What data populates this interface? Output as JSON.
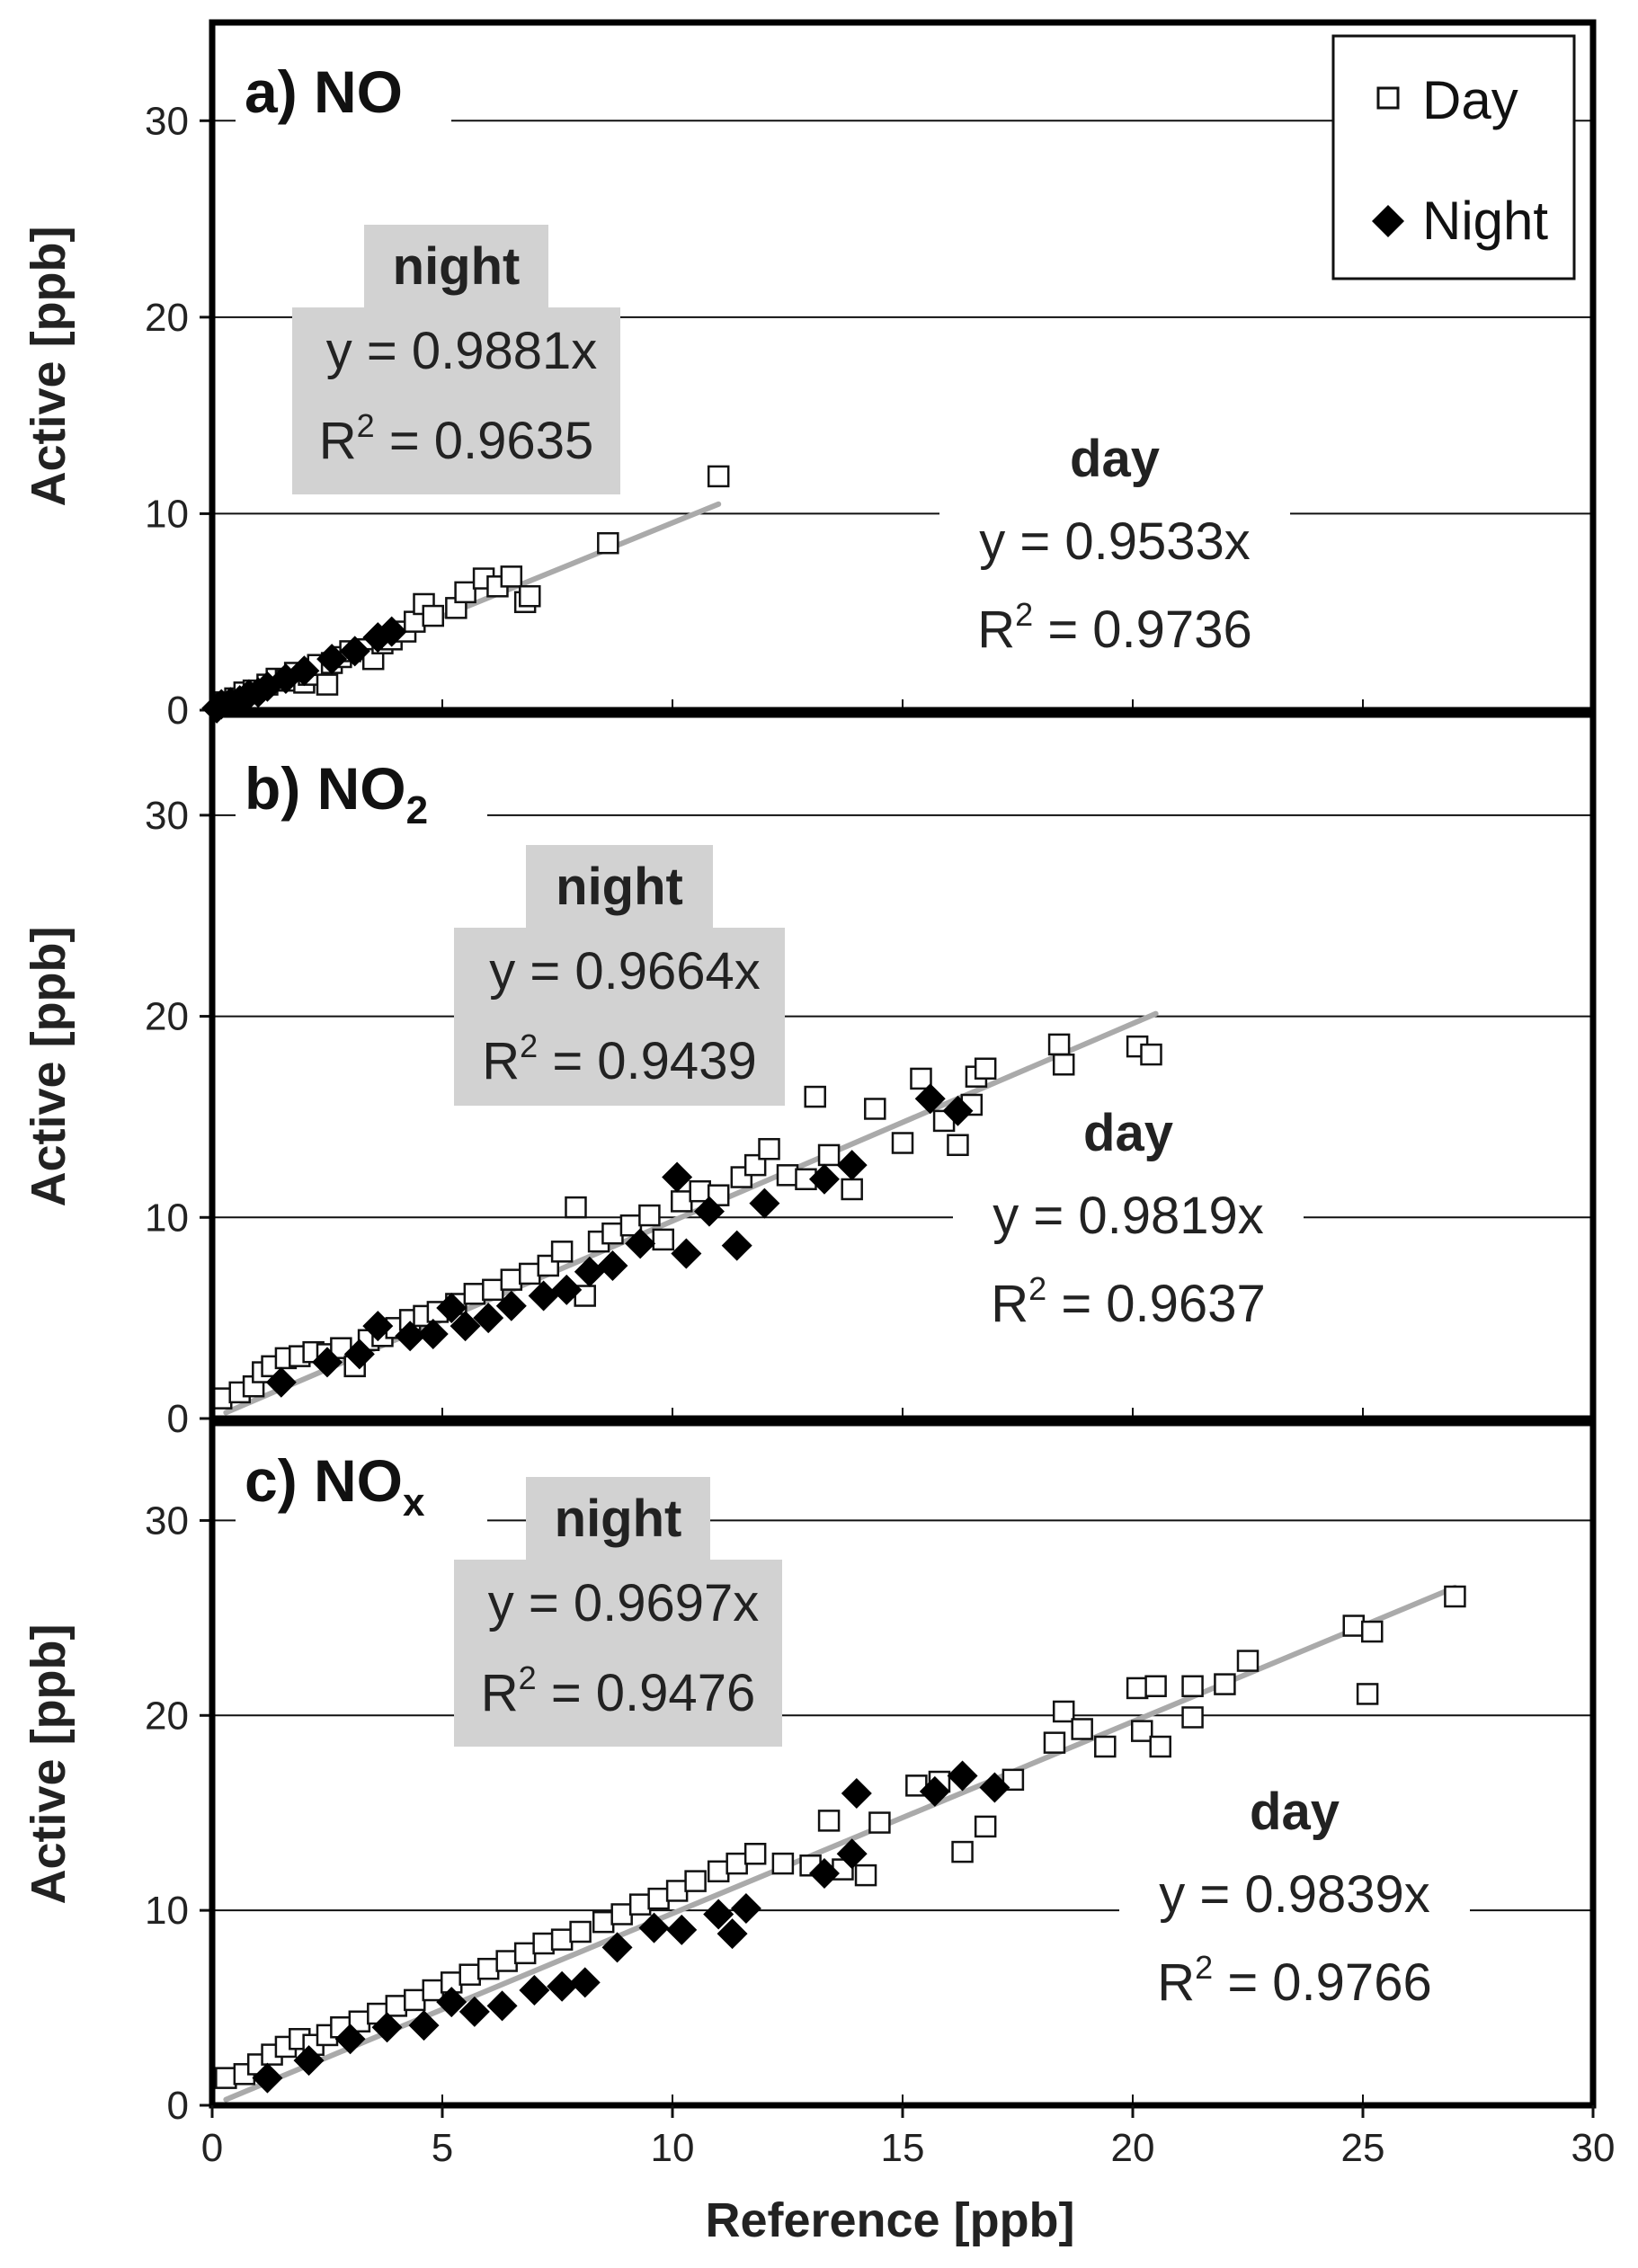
{
  "chart_data": {
    "type": "scatter",
    "xlabel": "Reference [ppb]",
    "ylabel": "Active [ppb]",
    "xlim": [
      0,
      30
    ],
    "ylim": [
      0,
      35
    ],
    "xticks": [
      "0",
      "5",
      "10",
      "15",
      "20",
      "25",
      "30"
    ],
    "yticks": [
      "0",
      "10",
      "20",
      "30"
    ],
    "legend": {
      "position": "top-right",
      "day": "Day",
      "night": "Night"
    },
    "panels": [
      {
        "id": "a",
        "label_prefix": "a)",
        "label_species": "NO",
        "label_subscript": "",
        "day_fit": {
          "title": "day",
          "eq": "y = 0.9533x",
          "r2_prefix": "R",
          "r2_sup": "2",
          "r2_value": " = 0.9736",
          "slope": 0.9533,
          "xmax": 11.0
        },
        "night_fit": {
          "title": "night",
          "eq": "y = 0.9881x",
          "r2_prefix": "R",
          "r2_sup": "2",
          "r2_value": " = 0.9635",
          "slope": 0.9881
        },
        "day_points": [
          [
            0.3,
            0.4
          ],
          [
            0.5,
            0.6
          ],
          [
            0.7,
            0.9
          ],
          [
            0.9,
            1.0
          ],
          [
            1.2,
            1.3
          ],
          [
            1.4,
            1.6
          ],
          [
            1.6,
            1.5
          ],
          [
            1.8,
            1.9
          ],
          [
            2.0,
            1.4
          ],
          [
            2.1,
            1.8
          ],
          [
            2.3,
            2.3
          ],
          [
            2.5,
            1.3
          ],
          [
            2.6,
            2.4
          ],
          [
            2.8,
            2.7
          ],
          [
            3.0,
            3.0
          ],
          [
            3.3,
            3.1
          ],
          [
            3.5,
            2.6
          ],
          [
            3.7,
            3.4
          ],
          [
            3.9,
            3.6
          ],
          [
            4.2,
            4.0
          ],
          [
            4.4,
            4.5
          ],
          [
            4.6,
            5.4
          ],
          [
            4.8,
            4.8
          ],
          [
            5.3,
            5.2
          ],
          [
            5.5,
            6.0
          ],
          [
            5.9,
            6.7
          ],
          [
            6.2,
            6.3
          ],
          [
            6.5,
            6.8
          ],
          [
            6.8,
            5.5
          ],
          [
            6.9,
            5.8
          ],
          [
            8.6,
            8.5
          ],
          [
            11.0,
            11.9
          ]
        ],
        "night_points": [
          [
            0.1,
            0.1
          ],
          [
            0.2,
            0.3
          ],
          [
            0.4,
            0.4
          ],
          [
            0.6,
            0.5
          ],
          [
            0.8,
            0.8
          ],
          [
            1.0,
            0.9
          ],
          [
            1.2,
            1.2
          ],
          [
            1.6,
            1.6
          ],
          [
            2.0,
            2.0
          ],
          [
            2.6,
            2.6
          ],
          [
            3.1,
            3.0
          ],
          [
            3.6,
            3.7
          ],
          [
            3.9,
            4.0
          ]
        ]
      },
      {
        "id": "b",
        "label_prefix": "b)",
        "label_species": "NO",
        "label_subscript": "2",
        "day_fit": {
          "title": "day",
          "eq": "y = 0.9819x",
          "r2_prefix": "R",
          "r2_sup": "2",
          "r2_value": " = 0.9637",
          "slope": 0.9819,
          "xmax": 20.5
        },
        "night_fit": {
          "title": "night",
          "eq": "y = 0.9664x",
          "r2_prefix": "R",
          "r2_sup": "2",
          "r2_value": " = 0.9439",
          "slope": 0.9664
        },
        "day_points": [
          [
            0.2,
            1.0
          ],
          [
            0.6,
            1.3
          ],
          [
            0.9,
            1.6
          ],
          [
            1.1,
            2.3
          ],
          [
            1.3,
            2.6
          ],
          [
            1.6,
            3.0
          ],
          [
            1.9,
            3.1
          ],
          [
            2.2,
            3.3
          ],
          [
            2.5,
            3.2
          ],
          [
            2.8,
            3.5
          ],
          [
            3.1,
            2.6
          ],
          [
            3.4,
            3.9
          ],
          [
            3.7,
            4.1
          ],
          [
            4.0,
            4.5
          ],
          [
            4.3,
            4.9
          ],
          [
            4.6,
            5.1
          ],
          [
            4.9,
            5.3
          ],
          [
            5.3,
            5.7
          ],
          [
            5.7,
            6.2
          ],
          [
            6.1,
            6.4
          ],
          [
            6.5,
            6.9
          ],
          [
            6.9,
            7.2
          ],
          [
            7.3,
            7.6
          ],
          [
            7.6,
            8.3
          ],
          [
            7.9,
            10.5
          ],
          [
            8.1,
            6.1
          ],
          [
            8.4,
            8.8
          ],
          [
            8.7,
            9.2
          ],
          [
            9.1,
            9.6
          ],
          [
            9.5,
            10.1
          ],
          [
            9.8,
            8.9
          ],
          [
            10.2,
            10.8
          ],
          [
            10.6,
            11.3
          ],
          [
            11.0,
            11.1
          ],
          [
            11.5,
            12.0
          ],
          [
            11.8,
            12.6
          ],
          [
            12.1,
            13.4
          ],
          [
            12.5,
            12.1
          ],
          [
            12.9,
            11.9
          ],
          [
            13.1,
            16.0
          ],
          [
            13.4,
            13.1
          ],
          [
            13.9,
            11.4
          ],
          [
            14.4,
            15.4
          ],
          [
            15.0,
            13.7
          ],
          [
            15.4,
            16.9
          ],
          [
            15.9,
            14.8
          ],
          [
            16.2,
            13.6
          ],
          [
            16.5,
            15.6
          ],
          [
            16.6,
            17.0
          ],
          [
            16.8,
            17.4
          ],
          [
            18.4,
            18.6
          ],
          [
            18.5,
            17.6
          ],
          [
            20.1,
            18.5
          ],
          [
            20.4,
            18.1
          ]
        ],
        "night_points": [
          [
            1.5,
            1.8
          ],
          [
            2.5,
            2.8
          ],
          [
            3.2,
            3.2
          ],
          [
            3.6,
            4.6
          ],
          [
            4.3,
            4.1
          ],
          [
            4.8,
            4.2
          ],
          [
            5.2,
            5.5
          ],
          [
            5.5,
            4.6
          ],
          [
            6.0,
            5.0
          ],
          [
            6.5,
            5.6
          ],
          [
            7.2,
            6.1
          ],
          [
            7.7,
            6.4
          ],
          [
            8.2,
            7.3
          ],
          [
            8.7,
            7.6
          ],
          [
            9.3,
            8.7
          ],
          [
            10.1,
            12.0
          ],
          [
            10.3,
            8.2
          ],
          [
            10.8,
            10.3
          ],
          [
            11.4,
            8.6
          ],
          [
            12.0,
            10.7
          ],
          [
            13.3,
            11.9
          ],
          [
            13.9,
            12.6
          ],
          [
            15.6,
            15.9
          ],
          [
            16.2,
            15.3
          ]
        ]
      },
      {
        "id": "c",
        "label_prefix": "c)",
        "label_species": "NO",
        "label_subscript": "x",
        "day_fit": {
          "title": "day",
          "eq": "y = 0.9839x",
          "r2_prefix": "R",
          "r2_sup": "2",
          "r2_value": " = 0.9766",
          "slope": 0.9839,
          "xmax": 27.0
        },
        "night_fit": {
          "title": "night",
          "eq": "y = 0.9697x",
          "r2_prefix": "R",
          "r2_sup": "2",
          "r2_value": " = 0.9476",
          "slope": 0.9697
        },
        "day_points": [
          [
            0.3,
            1.4
          ],
          [
            0.7,
            1.6
          ],
          [
            1.0,
            2.1
          ],
          [
            1.3,
            2.6
          ],
          [
            1.6,
            3.0
          ],
          [
            1.9,
            3.4
          ],
          [
            2.2,
            3.1
          ],
          [
            2.5,
            3.6
          ],
          [
            2.8,
            4.0
          ],
          [
            3.2,
            4.3
          ],
          [
            3.6,
            4.7
          ],
          [
            4.0,
            5.1
          ],
          [
            4.4,
            5.4
          ],
          [
            4.8,
            5.9
          ],
          [
            5.2,
            6.3
          ],
          [
            5.6,
            6.7
          ],
          [
            6.0,
            7.0
          ],
          [
            6.4,
            7.4
          ],
          [
            6.8,
            7.8
          ],
          [
            7.2,
            8.3
          ],
          [
            7.6,
            8.5
          ],
          [
            8.0,
            8.9
          ],
          [
            8.5,
            9.4
          ],
          [
            8.9,
            9.8
          ],
          [
            9.3,
            10.3
          ],
          [
            9.7,
            10.6
          ],
          [
            10.1,
            11.0
          ],
          [
            10.5,
            11.5
          ],
          [
            11.0,
            12.0
          ],
          [
            11.4,
            12.4
          ],
          [
            11.8,
            12.9
          ],
          [
            12.4,
            12.4
          ],
          [
            13.0,
            12.3
          ],
          [
            13.4,
            14.6
          ],
          [
            13.7,
            12.1
          ],
          [
            14.2,
            11.8
          ],
          [
            14.5,
            14.5
          ],
          [
            15.3,
            16.4
          ],
          [
            15.8,
            16.6
          ],
          [
            16.3,
            13.0
          ],
          [
            16.8,
            14.3
          ],
          [
            17.4,
            16.7
          ],
          [
            18.3,
            18.6
          ],
          [
            18.5,
            20.2
          ],
          [
            18.9,
            19.3
          ],
          [
            19.4,
            18.4
          ],
          [
            20.1,
            21.4
          ],
          [
            20.2,
            19.2
          ],
          [
            20.5,
            21.5
          ],
          [
            20.6,
            18.4
          ],
          [
            21.3,
            21.5
          ],
          [
            21.3,
            19.9
          ],
          [
            22.0,
            21.6
          ],
          [
            22.5,
            22.8
          ],
          [
            24.8,
            24.6
          ],
          [
            25.1,
            21.1
          ],
          [
            25.2,
            24.3
          ],
          [
            27.0,
            26.1
          ]
        ],
        "night_points": [
          [
            1.2,
            1.4
          ],
          [
            2.1,
            2.3
          ],
          [
            3.0,
            3.4
          ],
          [
            3.8,
            4.0
          ],
          [
            4.6,
            4.1
          ],
          [
            5.2,
            5.3
          ],
          [
            5.7,
            4.8
          ],
          [
            6.3,
            5.1
          ],
          [
            7.0,
            5.9
          ],
          [
            7.6,
            6.1
          ],
          [
            8.1,
            6.3
          ],
          [
            8.8,
            8.1
          ],
          [
            9.6,
            9.1
          ],
          [
            10.2,
            9.0
          ],
          [
            11.0,
            9.8
          ],
          [
            11.3,
            8.8
          ],
          [
            11.6,
            10.1
          ],
          [
            13.3,
            11.9
          ],
          [
            13.9,
            12.9
          ],
          [
            14.0,
            16.0
          ],
          [
            15.7,
            16.1
          ],
          [
            16.3,
            16.9
          ],
          [
            17.0,
            16.3
          ]
        ]
      }
    ]
  }
}
